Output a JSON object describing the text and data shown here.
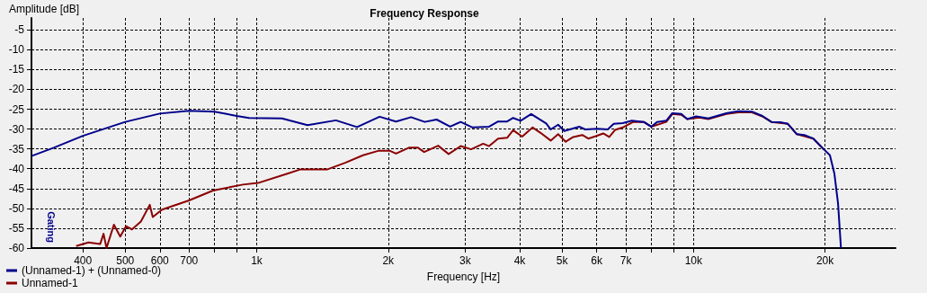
{
  "chart_data": {
    "type": "line",
    "title": "Frequency Response",
    "xlabel": "Frequency [Hz]",
    "ylabel": "Amplitude [dB]",
    "log": "x",
    "grid": true,
    "legend": "bottom left",
    "marker": "none",
    "xlim": [
      305,
      29000
    ],
    "xticks": [
      400,
      500,
      600,
      700,
      {
        "value": 800,
        "label": null
      },
      {
        "value": 900,
        "label": null
      },
      {
        "value": 1000,
        "label": "1k"
      },
      {
        "value": 2000,
        "label": "2k"
      },
      {
        "value": 3000,
        "label": "3k"
      },
      {
        "value": 4000,
        "label": "4k"
      },
      {
        "value": 5000,
        "label": "5k"
      },
      {
        "value": 6000,
        "label": "6k"
      },
      {
        "value": 7000,
        "label": "7k"
      },
      {
        "value": 8000,
        "label": null
      },
      {
        "value": 9000,
        "label": null
      },
      {
        "value": 10000,
        "label": "10k"
      },
      {
        "value": 20000,
        "label": "20k"
      }
    ],
    "ylim": [
      -60,
      -2
    ],
    "yticks": [
      -60,
      -55,
      -50,
      -45,
      -40,
      -35,
      -30,
      -25,
      -20,
      -15,
      -10,
      -5
    ],
    "annotations": [
      "Gating"
    ],
    "series": [
      {
        "name": "(Unnamed-1) + (Unnamed-0)",
        "color": "#00008c",
        "x": [
          305,
          343,
          400,
          500,
          600,
          700,
          800,
          900,
          960,
          1142,
          1307,
          1518,
          1697,
          1911,
          2084,
          2256,
          2424,
          2581,
          2772,
          2930,
          3120,
          3404,
          3569,
          3743,
          3864,
          4018,
          4249,
          4600,
          4710,
          4898,
          5057,
          5473,
          5649,
          6018,
          6361,
          6566,
          6885,
          7222,
          7691,
          8000,
          8260,
          8660,
          8940,
          9376,
          9675,
          10140,
          10810,
          11890,
          12660,
          13600,
          14370,
          15070,
          15810,
          16440,
          17240,
          17930,
          18800,
          19880,
          20520,
          21010,
          21420,
          21750
        ],
        "values": [
          -36.8,
          -34.7,
          -31.7,
          -28.2,
          -26.1,
          -25.4,
          -25.6,
          -26.7,
          -27.2,
          -27.3,
          -29.0,
          -27.8,
          -29.5,
          -26.9,
          -28.1,
          -27.0,
          -28.2,
          -27.6,
          -29.4,
          -28.2,
          -29.6,
          -29.4,
          -28.1,
          -28.1,
          -27.2,
          -27.9,
          -26.2,
          -28.6,
          -30.1,
          -28.9,
          -30.5,
          -29.4,
          -30.1,
          -29.9,
          -30.1,
          -28.7,
          -28.5,
          -27.9,
          -28.2,
          -29.4,
          -28.2,
          -27.9,
          -26.0,
          -26.2,
          -27.5,
          -26.8,
          -27.3,
          -26.0,
          -25.5,
          -25.6,
          -26.7,
          -28.2,
          -28.3,
          -28.7,
          -31.3,
          -31.5,
          -32.4,
          -35.1,
          -36.6,
          -41.2,
          -48.8,
          -60
        ]
      },
      {
        "name": "Unnamed-1",
        "color": "#8b0000",
        "x": [
          386,
          412,
          438,
          446,
          453,
          471,
          487,
          502,
          518,
          543,
          569,
          578,
          607,
          700,
          794,
          930,
          1007,
          1179,
          1256,
          1448,
          1594,
          1751,
          1896,
          2019,
          2084,
          2230,
          2340,
          2417,
          2602,
          2750,
          2930,
          3095,
          3299,
          3404,
          3569,
          3743,
          3864,
          4052,
          4282,
          4457,
          4710,
          4898,
          5097,
          5304,
          5563,
          5741,
          5974,
          6213,
          6412,
          6617,
          6885,
          7278,
          7691,
          8000,
          8660,
          8940,
          9376,
          9675,
          10310,
          10810,
          11890,
          12660,
          13600,
          14370,
          15070,
          16440,
          17240,
          18800,
          19880
        ],
        "values": [
          -59.5,
          -58.6,
          -59.0,
          -56.4,
          -60,
          -54.1,
          -57.1,
          -54.5,
          -55.3,
          -53.3,
          -49.1,
          -52.2,
          -50.3,
          -48.0,
          -45.5,
          -44.0,
          -43.6,
          -41.2,
          -40.2,
          -40.2,
          -38.5,
          -36.6,
          -35.5,
          -35.5,
          -36.2,
          -34.7,
          -34.7,
          -35.8,
          -34.2,
          -36.3,
          -34.3,
          -35.1,
          -33.7,
          -34.3,
          -32.4,
          -32.2,
          -30.3,
          -31.9,
          -29.6,
          -30.9,
          -32.9,
          -31.3,
          -33.2,
          -32.0,
          -31.5,
          -32.4,
          -31.8,
          -31.1,
          -32.0,
          -30.2,
          -29.6,
          -28.2,
          -28.2,
          -29.4,
          -28.2,
          -26.2,
          -26.4,
          -27.5,
          -27.1,
          -27.5,
          -26.2,
          -25.8,
          -25.8,
          -26.8,
          -28.2,
          -28.7,
          -31.3,
          -32.4,
          -35.2
        ]
      }
    ]
  }
}
